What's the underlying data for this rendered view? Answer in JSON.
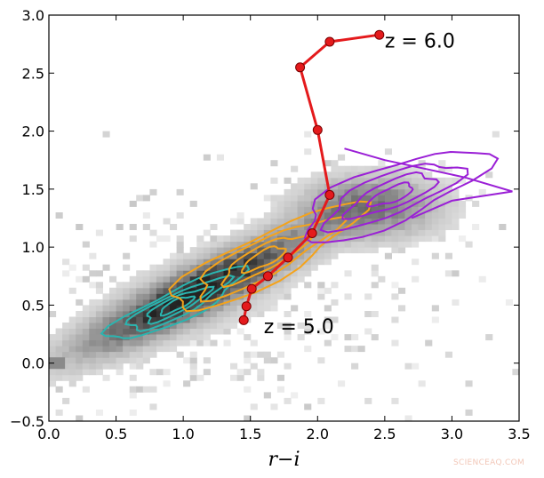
{
  "chart_data": {
    "type": "scatter",
    "title": "",
    "xlabel": "r−i",
    "ylabel": "",
    "xlim": [
      0.0,
      3.5
    ],
    "ylim": [
      -0.5,
      3.0
    ],
    "xticks": [
      "0.0",
      "0.5",
      "1.0",
      "1.5",
      "2.0",
      "2.5",
      "3.0",
      "3.5"
    ],
    "yticks": [
      "−0.5",
      "0.0",
      "0.5",
      "1.0",
      "1.5",
      "2.0",
      "2.5",
      "3.0"
    ],
    "background": "grayscale 2D histogram of source density, densest along r−i 0.5–2.5, i−z 0.3–1.5",
    "series": [
      {
        "color": "#e41a1c",
        "points": [
          [
            1.45,
            0.37
          ],
          [
            1.47,
            0.49
          ],
          [
            1.51,
            0.64
          ],
          [
            1.63,
            0.75
          ],
          [
            1.78,
            0.91
          ],
          [
            1.96,
            1.12
          ],
          [
            2.09,
            1.45
          ],
          [
            2.0,
            2.01
          ],
          [
            1.87,
            2.55
          ],
          [
            2.09,
            2.77
          ],
          [
            2.46,
            2.83
          ]
        ]
      }
    ],
    "contours": [
      {
        "color": "#2ab5b0",
        "center": [
          0.95,
          0.5
        ]
      },
      {
        "color": "#f5a31a",
        "center": [
          1.6,
          0.9
        ]
      },
      {
        "color": "#9a1fd6",
        "center": [
          2.55,
          1.45
        ]
      }
    ],
    "annotations": [
      {
        "text": "z = 6.0",
        "at": [
          2.5,
          2.78
        ]
      },
      {
        "text": "z = 5.0",
        "at": [
          1.6,
          0.32
        ]
      }
    ],
    "grid": false,
    "legend": "none"
  },
  "watermark": "SCIENCEAQ.COM"
}
